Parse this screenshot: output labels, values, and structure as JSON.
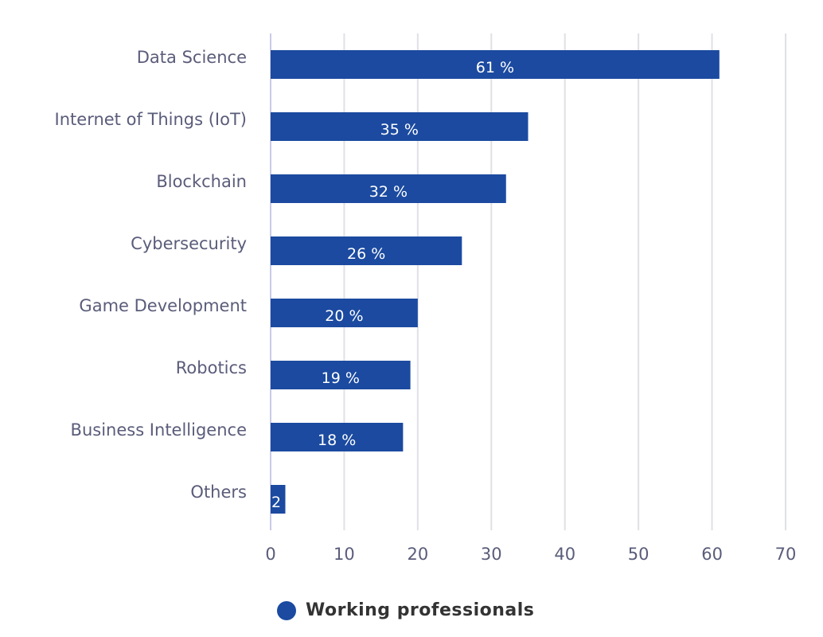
{
  "chart_data": {
    "type": "bar",
    "orientation": "horizontal",
    "categories": [
      "Data Science",
      "Internet of Things (IoT)",
      "Blockchain",
      "Cybersecurity",
      "Game Development",
      "Robotics",
      "Business Intelligence",
      "Others"
    ],
    "series": [
      {
        "name": "Working professionals",
        "values": [
          61,
          35,
          32,
          26,
          20,
          19,
          18,
          2
        ],
        "color": "#1b4aa0"
      }
    ],
    "data_labels": [
      "61 %",
      "35 %",
      "32 %",
      "26 %",
      "20 %",
      "19 %",
      "18 %",
      "2"
    ],
    "xlim": [
      0,
      70
    ],
    "xticks": [
      0,
      10,
      20,
      30,
      40,
      50,
      60,
      70
    ],
    "grid": true,
    "legend": "bottom-center",
    "title": "",
    "xlabel": "",
    "ylabel": ""
  }
}
